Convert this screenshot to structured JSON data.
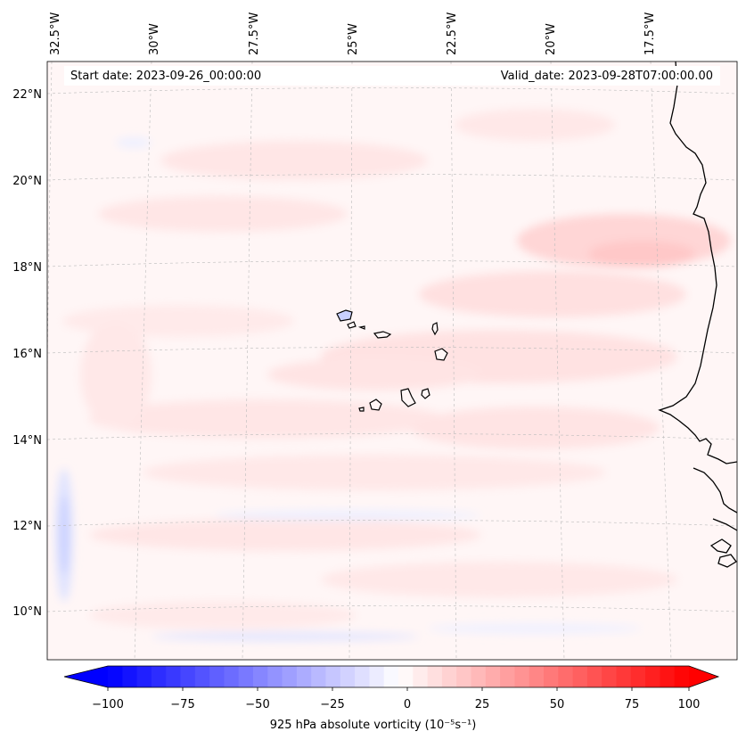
{
  "header": {
    "start_date": "Start date: 2023-09-26_00:00:00",
    "valid_date": "Valid_date: 2023-09-28T07:00:00.00"
  },
  "map": {
    "longitude_labels": [
      "32.5°W",
      "30°W",
      "27.5°W",
      "25°W",
      "22.5°W",
      "20°W",
      "17.5°W"
    ],
    "latitude_labels": [
      "22°N",
      "20°N",
      "18°N",
      "16°N",
      "14°N",
      "12°N",
      "10°N"
    ],
    "field": "925 hPa absolute vorticity",
    "features": [
      "Cape Verde islands",
      "West African coastline"
    ]
  },
  "colorbar": {
    "ticks": [
      "−100",
      "−75",
      "−50",
      "−25",
      "0",
      "25",
      "50",
      "75",
      "100"
    ],
    "min": -100,
    "max": 100,
    "step": 5,
    "title": "925 hPa absolute vorticity (10⁻⁵s⁻¹)",
    "low_color": "#0000ff",
    "mid_color": "#ffffff",
    "high_color": "#ff0000"
  }
}
